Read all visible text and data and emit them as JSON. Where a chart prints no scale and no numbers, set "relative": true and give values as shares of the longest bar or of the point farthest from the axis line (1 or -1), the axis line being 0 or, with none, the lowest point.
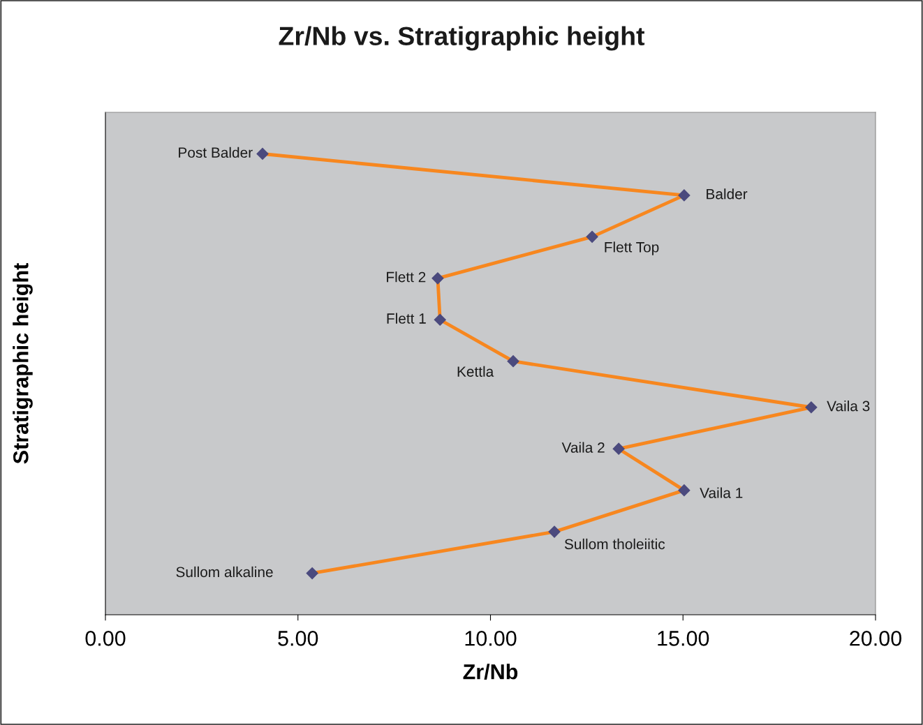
{
  "chart_data": {
    "type": "line",
    "title": "Zr/Nb vs. Stratigraphic height",
    "xlabel": "Zr/Nb",
    "ylabel": "Stratigraphic height",
    "relative": true,
    "xlim": [
      0,
      20
    ],
    "xticks": [
      {
        "value": 0,
        "label": "0.00"
      },
      {
        "value": 5,
        "label": "5.00"
      },
      {
        "value": 10,
        "label": "10.00"
      },
      {
        "value": 15,
        "label": "15.00"
      },
      {
        "value": 20,
        "label": "20.00"
      }
    ],
    "grid": false,
    "legend": false,
    "marker": "diamond",
    "line_style": "solid",
    "series": [
      {
        "color": "#f7871f",
        "x": [
          4.08,
          15.03,
          12.64,
          8.63,
          8.69,
          10.59,
          18.33,
          13.33,
          15.03,
          11.66,
          5.37
        ],
        "values": [
          1.0,
          0.91,
          0.82,
          0.73,
          0.64,
          0.55,
          0.45,
          0.36,
          0.27,
          0.18,
          0.09
        ]
      }
    ],
    "annotations": [
      {
        "text": "Post Balder",
        "x": 4.08,
        "y": 1.0
      },
      {
        "text": "Balder",
        "x": 15.03,
        "y": 0.91
      },
      {
        "text": "Flett Top",
        "x": 12.64,
        "y": 0.82
      },
      {
        "text": "Flett 2",
        "x": 8.63,
        "y": 0.73
      },
      {
        "text": "Flett 1",
        "x": 8.69,
        "y": 0.64
      },
      {
        "text": "Kettla",
        "x": 10.59,
        "y": 0.55
      },
      {
        "text": "Vaila 3",
        "x": 18.33,
        "y": 0.45
      },
      {
        "text": "Vaila 2",
        "x": 13.33,
        "y": 0.36
      },
      {
        "text": "Vaila 1",
        "x": 15.03,
        "y": 0.27
      },
      {
        "text": "Sullom tholeiitic",
        "x": 11.66,
        "y": 0.18
      },
      {
        "text": "Sullom alkaline",
        "x": 5.37,
        "y": 0.09
      }
    ]
  }
}
